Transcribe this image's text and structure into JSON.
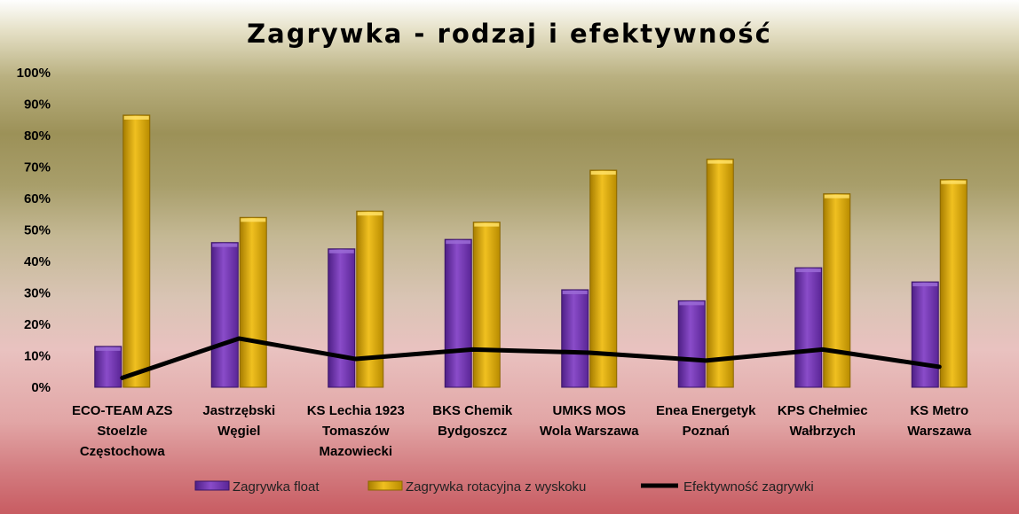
{
  "chart_data": {
    "type": "bar",
    "title": "Zagrywka - rodzaj i efektywność",
    "categories": [
      [
        "ECO-TEAM AZS",
        "Stoelzle",
        "Częstochowa"
      ],
      [
        "Jastrzębski",
        "Węgiel"
      ],
      [
        "KS Lechia 1923",
        "Tomaszów",
        "Mazowiecki"
      ],
      [
        "BKS Chemik",
        "Bydgoszcz"
      ],
      [
        "UMKS MOS",
        "Wola Warszawa"
      ],
      [
        "Enea Energetyk",
        "Poznań"
      ],
      [
        "KPS Chełmiec",
        "Wałbrzych"
      ],
      [
        "KS Metro",
        "Warszawa"
      ]
    ],
    "y_ticks": [
      "0%",
      "10%",
      "20%",
      "30%",
      "40%",
      "50%",
      "60%",
      "70%",
      "80%",
      "90%",
      "100%"
    ],
    "ylim": [
      0,
      100
    ],
    "series": [
      {
        "name": "Zagrywka float",
        "type": "bar",
        "color": "#7a3bb8",
        "values": [
          13,
          46,
          44,
          47,
          31,
          27.5,
          38,
          33.5
        ]
      },
      {
        "name": "Zagrywka rotacyjna z wyskoku",
        "type": "bar",
        "color": "#d8a900",
        "values": [
          86.5,
          54,
          56,
          52.5,
          69,
          72.5,
          61.5,
          66
        ]
      },
      {
        "name": "Efektywność zagrywki",
        "type": "line",
        "color": "#000000",
        "values": [
          3,
          15.5,
          9,
          12,
          11,
          8.5,
          12,
          6.5
        ]
      }
    ],
    "legend_position": "bottom",
    "grid": false
  }
}
